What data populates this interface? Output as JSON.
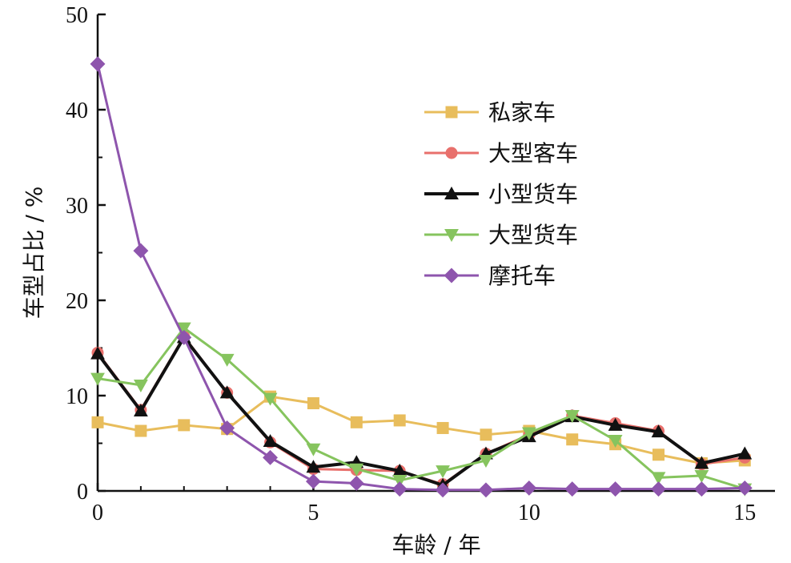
{
  "chart_data": {
    "type": "line",
    "title": "",
    "xlabel": "车龄 / 年",
    "ylabel": "车型占比 / %",
    "xlim": [
      0,
      15.7
    ],
    "ylim": [
      0,
      50
    ],
    "x_ticks": [
      0,
      5,
      10,
      15
    ],
    "y_ticks": [
      0,
      10,
      20,
      30,
      40,
      50
    ],
    "x_tick_labels": [
      "0",
      "5",
      "10",
      "15"
    ],
    "y_tick_labels": [
      "0",
      "10",
      "20",
      "30",
      "40",
      "50"
    ],
    "grid": false,
    "legend_position": "upper-right",
    "x": [
      0,
      1,
      2,
      3,
      4,
      5,
      6,
      7,
      8,
      9,
      10,
      11,
      12,
      13,
      14,
      15
    ],
    "series": [
      {
        "name": "私家车",
        "color": "#e8bd5c",
        "marker": "square",
        "line_width": 3,
        "values": [
          7.2,
          6.3,
          6.9,
          6.5,
          9.9,
          9.2,
          7.2,
          7.4,
          6.6,
          5.9,
          6.3,
          5.4,
          4.9,
          3.8,
          2.9,
          3.2
        ]
      },
      {
        "name": "大型客车",
        "color": "#e8706c",
        "marker": "circle",
        "line_width": 3,
        "values": [
          14.5,
          8.5,
          16.2,
          10.3,
          5.1,
          2.3,
          2.2,
          2.1,
          0.7,
          3.9,
          5.9,
          7.9,
          7.1,
          6.3,
          2.8,
          3.5
        ]
      },
      {
        "name": "小型货车",
        "color": "#111111",
        "marker": "triangle-up",
        "line_width": 4,
        "values": [
          14.4,
          8.4,
          16.1,
          10.3,
          5.2,
          2.5,
          3.0,
          2.1,
          0.6,
          3.9,
          5.7,
          7.8,
          6.9,
          6.2,
          2.9,
          3.9
        ]
      },
      {
        "name": "大型货车",
        "color": "#86c45e",
        "marker": "triangle-down",
        "line_width": 3,
        "values": [
          11.8,
          11.1,
          17.1,
          13.8,
          9.7,
          4.4,
          2.3,
          1.1,
          2.1,
          3.2,
          6.1,
          7.9,
          5.3,
          1.4,
          1.6,
          0.2
        ]
      },
      {
        "name": "摩托车",
        "color": "#8e55ad",
        "marker": "diamond",
        "line_width": 3,
        "values": [
          44.8,
          25.2,
          16.1,
          6.6,
          3.5,
          1.0,
          0.8,
          0.2,
          0.1,
          0.1,
          0.3,
          0.2,
          0.2,
          0.2,
          0.2,
          0.3
        ]
      }
    ]
  }
}
